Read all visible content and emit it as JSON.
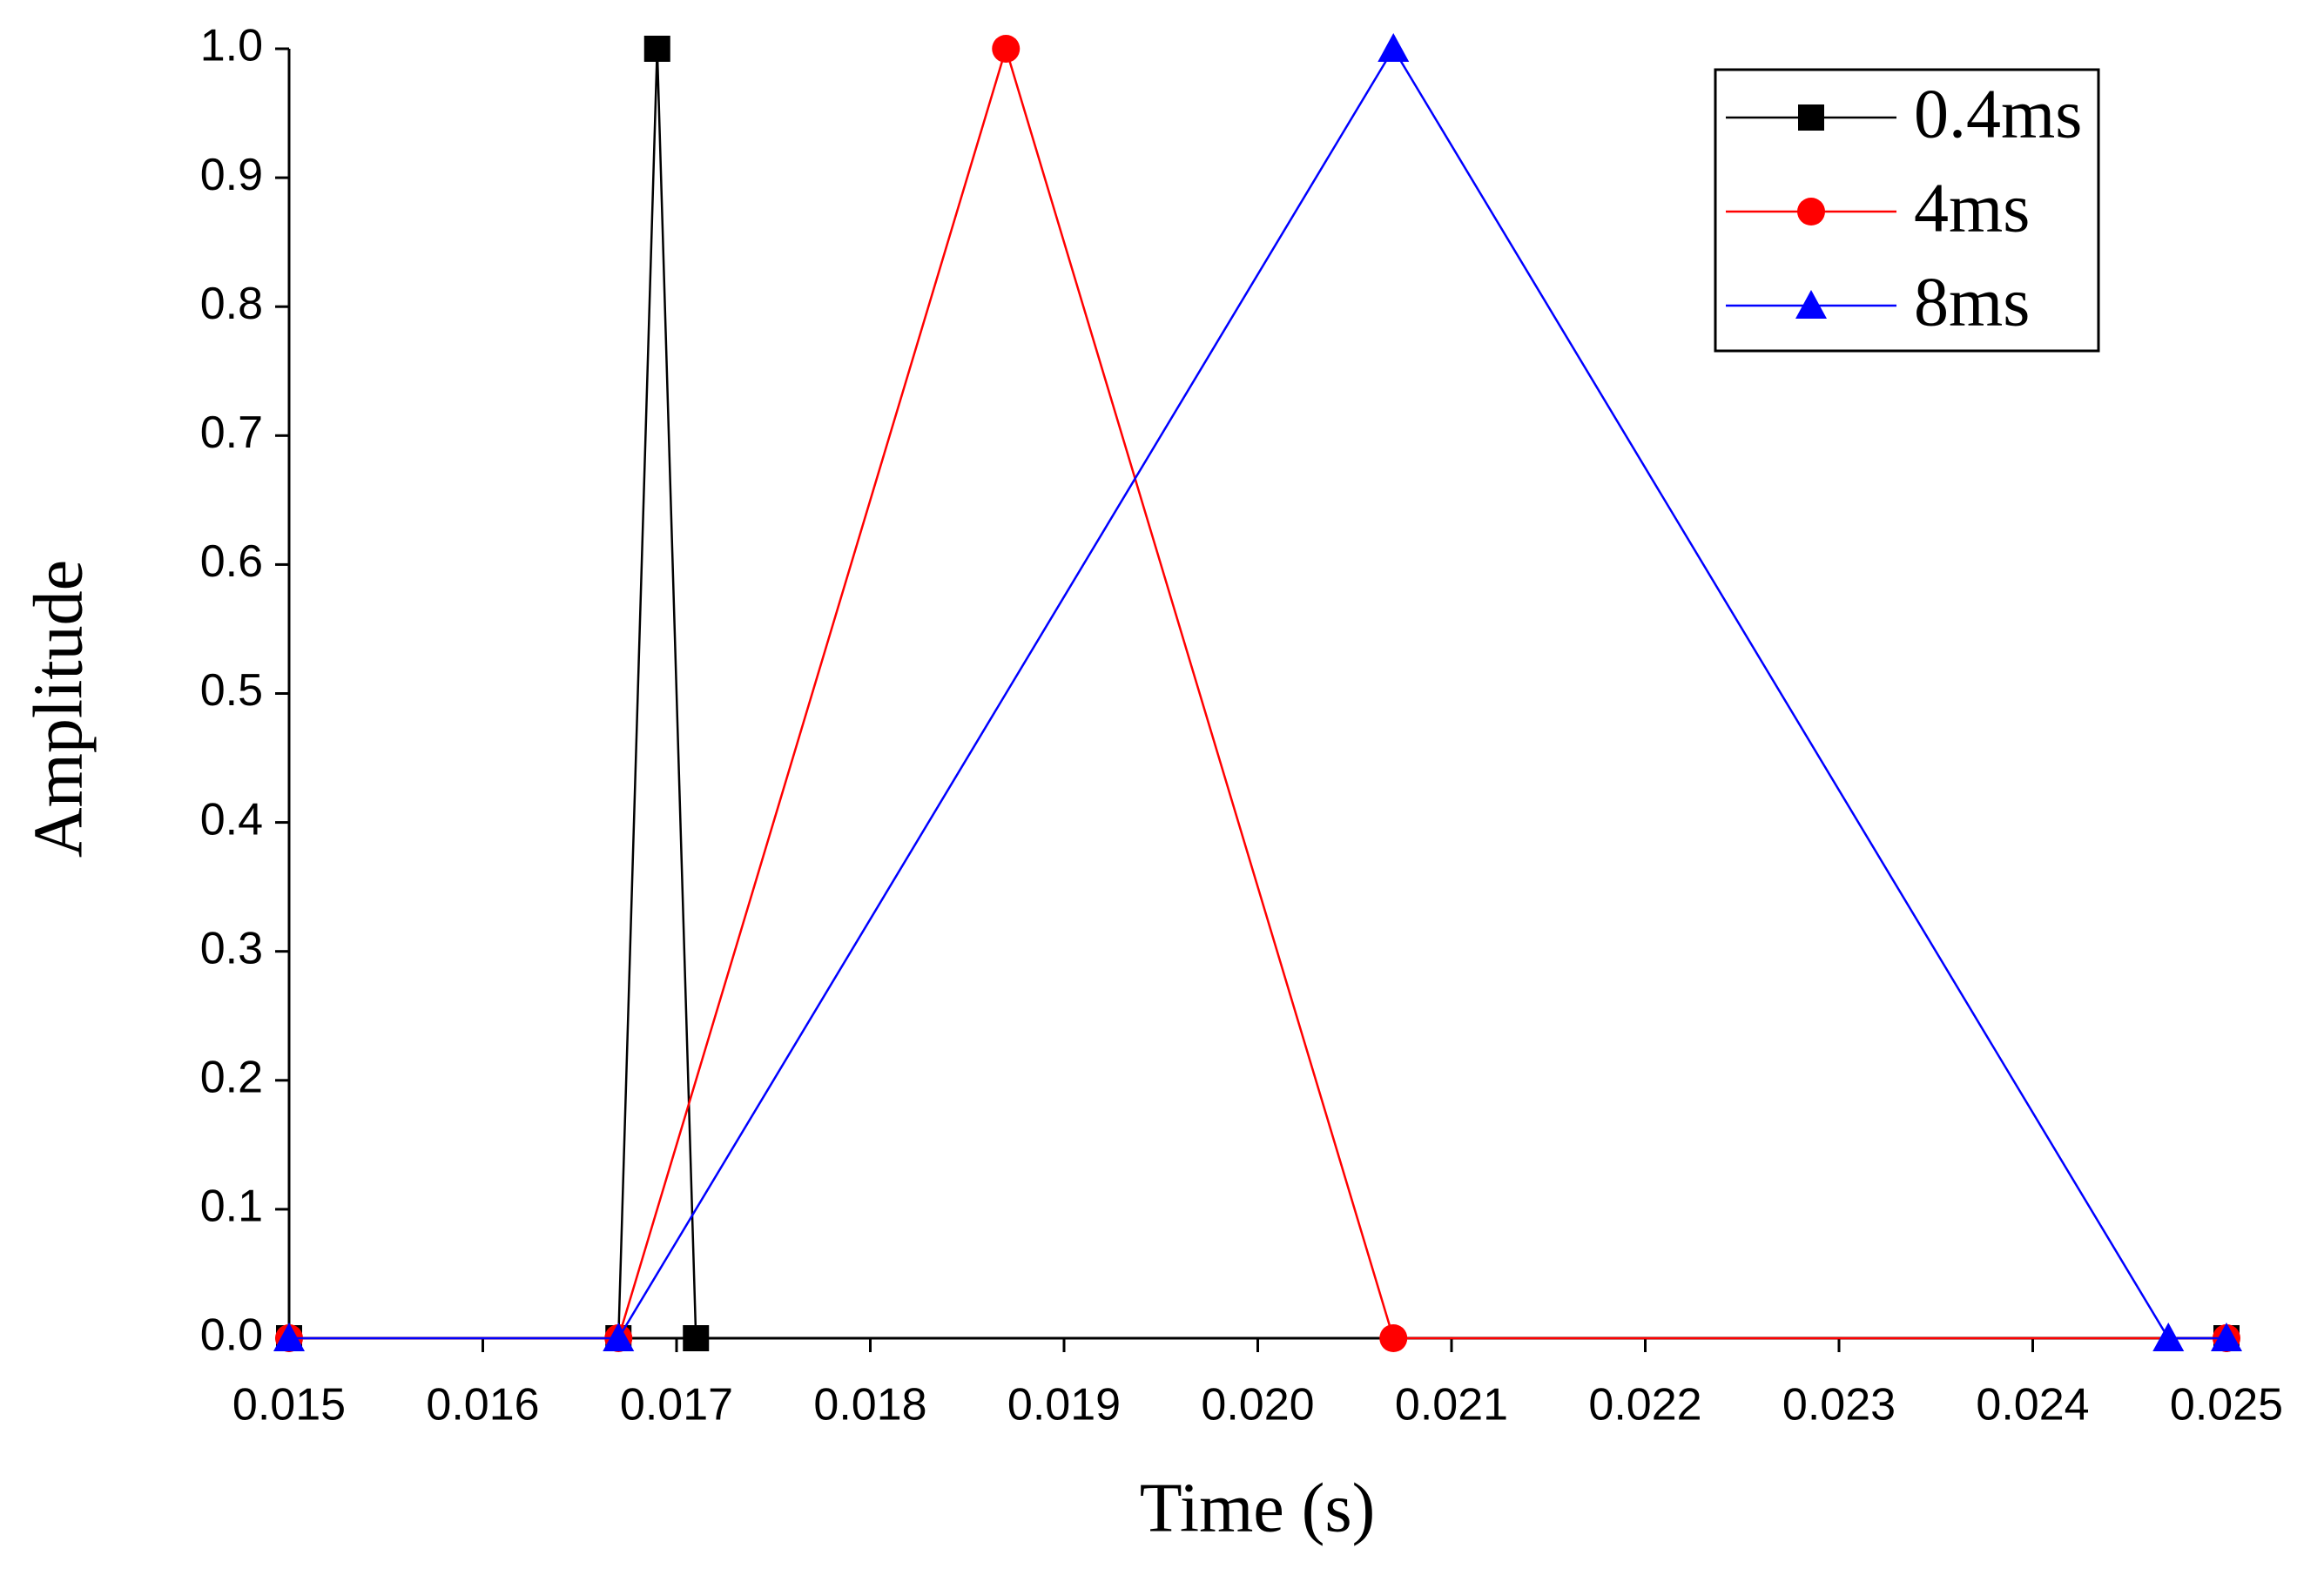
{
  "chart_data": {
    "type": "line",
    "x_label": "Time (s)",
    "y_label": "Amplitude",
    "xlim": [
      0.015,
      0.025
    ],
    "xticks": [
      0.015,
      0.016,
      0.017,
      0.018,
      0.019,
      {
        "value": 0.02,
        "label": "0.020"
      },
      0.021,
      0.022,
      0.023,
      0.024,
      0.025
    ],
    "ylim": [
      0,
      1
    ],
    "yticks": [
      {
        "value": 0,
        "label": "0.0"
      },
      0.1,
      0.2,
      0.3,
      0.4,
      0.5,
      0.6,
      0.7,
      0.8,
      0.9,
      {
        "value": 1,
        "label": "1.0"
      }
    ],
    "legend": "upper right",
    "series": [
      {
        "name": "0.4ms",
        "color": "#000000",
        "marker": "square",
        "x": [
          0.015,
          0.0167,
          0.0169,
          0.0171,
          0.025
        ],
        "values": [
          0,
          0,
          1,
          0,
          0
        ]
      },
      {
        "name": "4ms",
        "color": "#ff0000",
        "marker": "circle",
        "x": [
          0.015,
          0.0167,
          0.0187,
          0.0207,
          0.025
        ],
        "values": [
          0,
          0,
          1,
          0,
          0
        ]
      },
      {
        "name": "8ms",
        "color": "#0000ff",
        "marker": "triangle",
        "x": [
          0.015,
          0.0167,
          0.0207,
          0.0247,
          0.025
        ],
        "values": [
          0,
          0,
          1,
          0,
          0
        ]
      }
    ]
  }
}
